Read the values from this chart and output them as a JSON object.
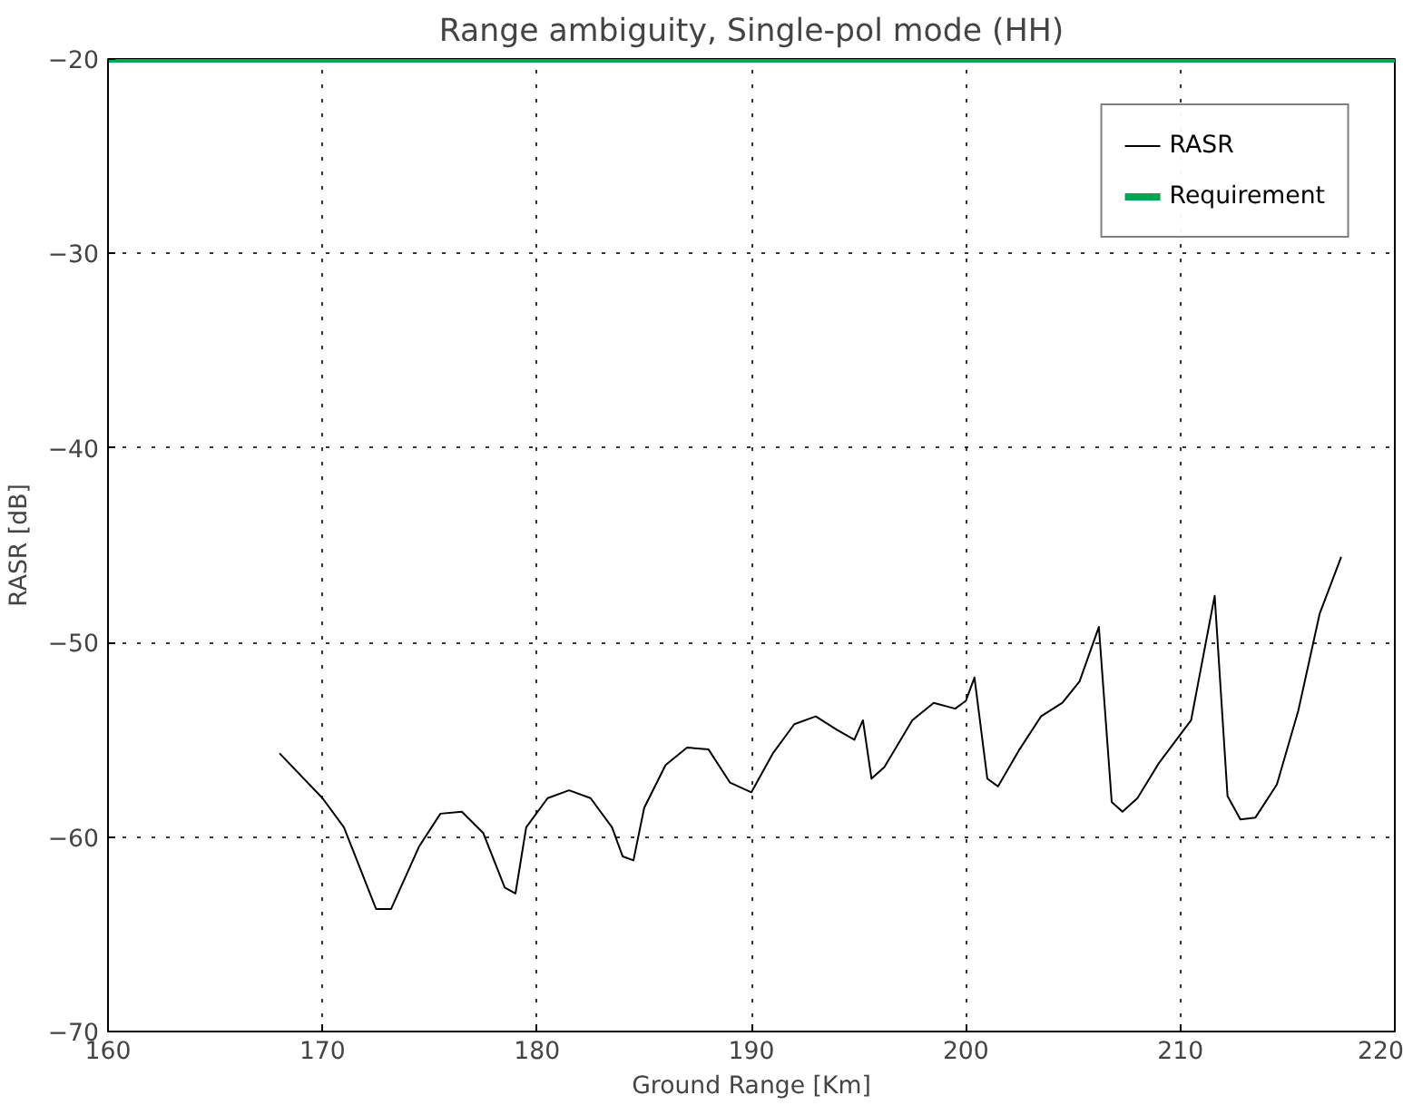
{
  "chart_data": {
    "type": "line",
    "title": "Range ambiguity, Single-pol mode (HH)",
    "xlabel": "Ground Range [Km]",
    "ylabel": "RASR [dB]",
    "xlim": [
      160,
      220
    ],
    "ylim": [
      -70,
      -20
    ],
    "xticks": [
      160,
      170,
      180,
      190,
      200,
      210,
      220
    ],
    "yticks": [
      -70,
      -60,
      -50,
      -40,
      -30,
      -20
    ],
    "grid": true,
    "legend": "top right",
    "series": [
      {
        "name": "RASR",
        "color": "#000000",
        "x": [
          168,
          170,
          171,
          172.5,
          173.2,
          174.5,
          175.5,
          176.5,
          177.5,
          178.5,
          179,
          179.5,
          180.5,
          181.5,
          182.5,
          183.5,
          184,
          184.5,
          185,
          186,
          187,
          188,
          189,
          190,
          191,
          192,
          193,
          194,
          194.8,
          195.2,
          195.6,
          196.2,
          197.5,
          198.5,
          199.5,
          200,
          200.4,
          201,
          201.5,
          202.5,
          203.5,
          204.5,
          205.3,
          206.2,
          206.8,
          207.3,
          208,
          209,
          210.5,
          211.6,
          212.2,
          212.8,
          213.5,
          214.5,
          215.5,
          216.5,
          217.5
        ],
        "values": [
          -55.7,
          -58,
          -59.5,
          -63.7,
          -63.7,
          -60.5,
          -58.8,
          -58.7,
          -59.8,
          -62.6,
          -62.9,
          -59.5,
          -58,
          -57.6,
          -58,
          -59.5,
          -61,
          -61.2,
          -58.5,
          -56.3,
          -55.4,
          -55.5,
          -57.2,
          -57.7,
          -55.7,
          -54.2,
          -53.8,
          -54.5,
          -55,
          -54,
          -57,
          -56.4,
          -54,
          -53.1,
          -53.4,
          -53,
          -51.8,
          -57,
          -57.4,
          -55.5,
          -53.8,
          -53.1,
          -52,
          -49.2,
          -58.2,
          -58.7,
          -58,
          -56.2,
          -54,
          -47.6,
          -57.9,
          -59.1,
          -59,
          -57.3,
          -53.5,
          -48.5,
          -45.6
        ]
      },
      {
        "name": "Requirement",
        "color": "#00a650",
        "x": [
          160,
          220
        ],
        "values": [
          -20,
          -20
        ]
      }
    ]
  }
}
